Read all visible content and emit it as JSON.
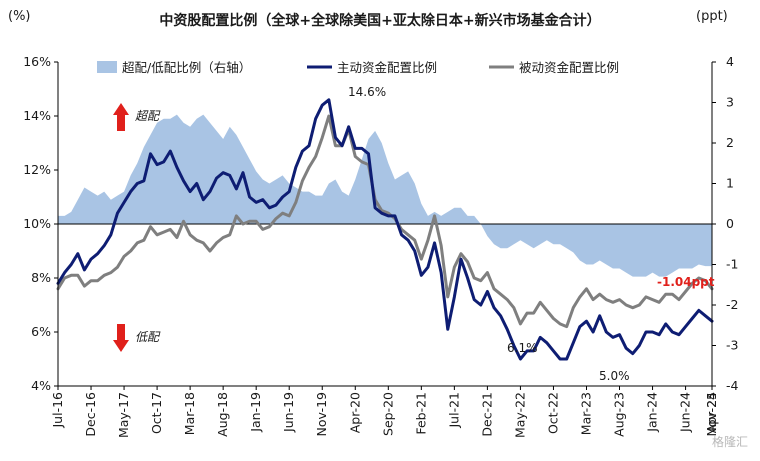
{
  "chart_data": {
    "type": "line",
    "title": "中资股配置比例（全球+全球除美国+亚太除日本+新兴市场基金合计）",
    "left_unit": "(%)",
    "right_unit": "(ppt)",
    "ylim_left": [
      4,
      16
    ],
    "ylim_right": [
      -4,
      4
    ],
    "yticks_left": [
      "4%",
      "6%",
      "8%",
      "10%",
      "12%",
      "14%",
      "16%"
    ],
    "yticks_right": [
      "-4",
      "-3",
      "-2",
      "-1",
      "0",
      "1",
      "2",
      "3",
      "4"
    ],
    "x_tick_labels": [
      "Jul-16",
      "Dec-16",
      "May-17",
      "Oct-17",
      "Mar-18",
      "Aug-18",
      "Jan-19",
      "Jun-19",
      "Nov-19",
      "Apr-20",
      "Sep-20",
      "Feb-21",
      "Jul-21",
      "Dec-21",
      "May-22",
      "Oct-22",
      "Mar-23",
      "Aug-23",
      "Jan-24",
      "Jun-24",
      "Nov-24",
      "Apr-25"
    ],
    "legend_position": "top",
    "grid": false,
    "series": [
      {
        "name": "超配/低配比例（右轴）",
        "type": "area",
        "axis": "right",
        "color": "#a9c4e4",
        "values": [
          0.2,
          0.2,
          0.3,
          0.6,
          0.9,
          0.8,
          0.7,
          0.8,
          0.6,
          0.7,
          0.8,
          1.2,
          1.5,
          1.9,
          2.2,
          2.5,
          2.6,
          2.6,
          2.7,
          2.5,
          2.4,
          2.6,
          2.7,
          2.5,
          2.3,
          2.1,
          2.4,
          2.2,
          1.9,
          1.6,
          1.3,
          1.1,
          1.0,
          1.1,
          1.2,
          1.0,
          0.9,
          0.8,
          0.8,
          0.7,
          0.7,
          1.0,
          1.1,
          0.8,
          0.7,
          1.1,
          1.6,
          2.1,
          2.3,
          2.0,
          1.5,
          1.1,
          1.2,
          1.3,
          1.0,
          0.5,
          0.2,
          0.3,
          0.2,
          0.3,
          0.4,
          0.4,
          0.2,
          0.2,
          0.0,
          -0.3,
          -0.5,
          -0.6,
          -0.6,
          -0.5,
          -0.4,
          -0.5,
          -0.6,
          -0.5,
          -0.4,
          -0.5,
          -0.5,
          -0.6,
          -0.7,
          -0.9,
          -1.0,
          -1.0,
          -0.9,
          -1.0,
          -1.1,
          -1.1,
          -1.2,
          -1.3,
          -1.3,
          -1.3,
          -1.2,
          -1.3,
          -1.3,
          -1.2,
          -1.1,
          -1.1,
          -1.1,
          -1.0,
          -1.04,
          -1.04
        ]
      },
      {
        "name": "主动资金配置比例",
        "type": "line",
        "axis": "left",
        "color": "#0e1d73",
        "values": [
          7.8,
          8.2,
          8.5,
          8.9,
          8.3,
          8.7,
          8.9,
          9.2,
          9.6,
          10.4,
          10.8,
          11.2,
          11.5,
          11.6,
          12.6,
          12.2,
          12.3,
          12.7,
          12.1,
          11.6,
          11.2,
          11.5,
          10.9,
          11.2,
          11.7,
          11.9,
          11.8,
          11.3,
          11.9,
          11.0,
          10.8,
          10.9,
          10.6,
          10.7,
          11.0,
          11.2,
          12.1,
          12.7,
          12.9,
          13.9,
          14.4,
          14.6,
          13.2,
          12.9,
          13.6,
          12.8,
          12.8,
          12.6,
          10.6,
          10.4,
          10.3,
          10.3,
          9.6,
          9.4,
          9.0,
          8.1,
          8.4,
          9.3,
          8.2,
          6.1,
          7.3,
          8.7,
          8.0,
          7.2,
          7.0,
          7.5,
          6.9,
          6.6,
          6.1,
          5.5,
          5.0,
          5.3,
          5.3,
          5.8,
          5.6,
          5.3,
          5.0,
          5.0,
          5.6,
          6.2,
          6.4,
          6.0,
          6.6,
          6.0,
          5.8,
          5.9,
          5.4,
          5.2,
          5.5,
          6.0,
          6.0,
          5.9,
          6.3,
          6.0,
          5.9,
          6.2,
          6.5,
          6.8,
          6.6,
          6.4
        ]
      },
      {
        "name": "被动资金配置比例",
        "type": "line",
        "axis": "left",
        "color": "#7f7f7f",
        "values": [
          7.6,
          8.0,
          8.1,
          8.1,
          7.7,
          7.9,
          7.9,
          8.1,
          8.2,
          8.4,
          8.8,
          9.0,
          9.3,
          9.4,
          9.9,
          9.6,
          9.7,
          9.8,
          9.5,
          10.1,
          9.6,
          9.4,
          9.3,
          9.0,
          9.3,
          9.5,
          9.6,
          10.3,
          10.0,
          10.1,
          10.1,
          9.8,
          9.9,
          10.2,
          10.4,
          10.3,
          10.8,
          11.6,
          12.1,
          12.5,
          13.2,
          14.0,
          12.9,
          12.9,
          13.5,
          12.5,
          12.3,
          12.2,
          10.9,
          10.5,
          10.4,
          10.2,
          9.8,
          9.6,
          9.4,
          8.7,
          9.4,
          10.3,
          9.2,
          7.3,
          8.4,
          8.9,
          8.6,
          8.0,
          7.9,
          8.2,
          7.6,
          7.4,
          7.2,
          6.9,
          6.3,
          6.7,
          6.7,
          7.1,
          6.8,
          6.5,
          6.3,
          6.2,
          6.9,
          7.3,
          7.6,
          7.2,
          7.4,
          7.2,
          7.1,
          7.2,
          7.0,
          6.9,
          7.0,
          7.3,
          7.2,
          7.1,
          7.4,
          7.4,
          7.2,
          7.5,
          7.8,
          8.0,
          7.9,
          7.6
        ]
      }
    ],
    "annotations": {
      "overweight": "超配",
      "underweight": "低配",
      "peak_label": "14.6%",
      "trough_oct22": "6.1%",
      "trough_jan24": "5.0%",
      "last_value": "-1.04ppt"
    }
  },
  "watermark": "格隆汇"
}
